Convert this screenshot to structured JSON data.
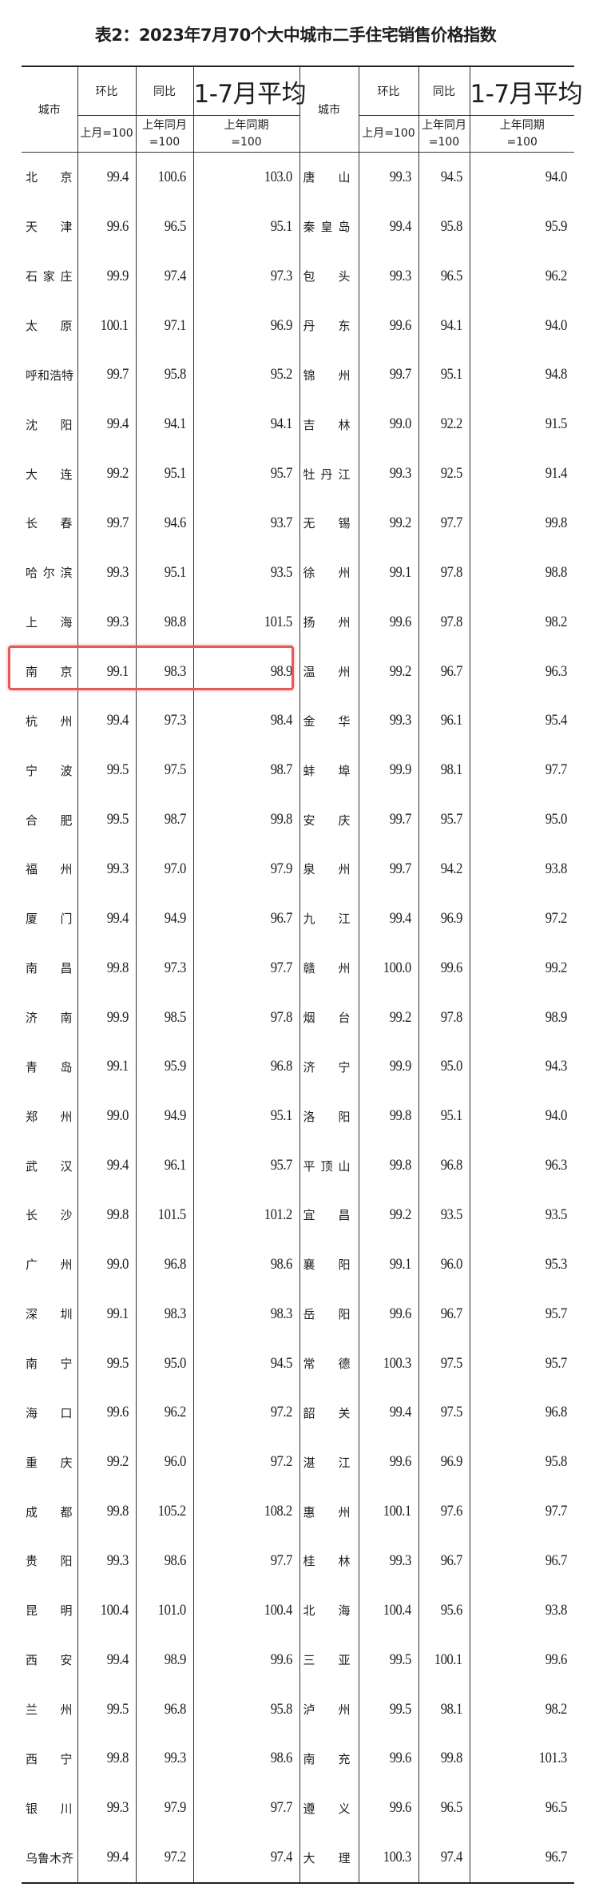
{
  "title": "表2：2023年7月70个大中城市二手住宅销售价格指数",
  "header": {
    "city": "城市",
    "mom": "环比",
    "yoy": "同比",
    "avg": "1-7月平均",
    "mom_base": "上月=100",
    "yoy_base_1": "上年同月",
    "yoy_base_2": "=100",
    "avg_base_1": "上年同期",
    "avg_base_2": "=100"
  },
  "highlight": {
    "city": "南京",
    "color": "#e45a5a"
  },
  "left": [
    {
      "city": "北京",
      "mom": "99.4",
      "yoy": "100.6",
      "avg": "103.0"
    },
    {
      "city": "天津",
      "mom": "99.6",
      "yoy": "96.5",
      "avg": "95.1"
    },
    {
      "city": "石家庄",
      "mom": "99.9",
      "yoy": "97.4",
      "avg": "97.3"
    },
    {
      "city": "太原",
      "mom": "100.1",
      "yoy": "97.1",
      "avg": "96.9"
    },
    {
      "city": "呼和浩特",
      "mom": "99.7",
      "yoy": "95.8",
      "avg": "95.2"
    },
    {
      "city": "沈阳",
      "mom": "99.4",
      "yoy": "94.1",
      "avg": "94.1"
    },
    {
      "city": "大连",
      "mom": "99.2",
      "yoy": "95.1",
      "avg": "95.7"
    },
    {
      "city": "长春",
      "mom": "99.7",
      "yoy": "94.6",
      "avg": "93.7"
    },
    {
      "city": "哈尔滨",
      "mom": "99.3",
      "yoy": "95.1",
      "avg": "93.5"
    },
    {
      "city": "上海",
      "mom": "99.3",
      "yoy": "98.8",
      "avg": "101.5"
    },
    {
      "city": "南京",
      "mom": "99.1",
      "yoy": "98.3",
      "avg": "98.9"
    },
    {
      "city": "杭州",
      "mom": "99.4",
      "yoy": "97.3",
      "avg": "98.4"
    },
    {
      "city": "宁波",
      "mom": "99.5",
      "yoy": "97.5",
      "avg": "98.7"
    },
    {
      "city": "合肥",
      "mom": "99.5",
      "yoy": "98.7",
      "avg": "99.8"
    },
    {
      "city": "福州",
      "mom": "99.3",
      "yoy": "97.0",
      "avg": "97.9"
    },
    {
      "city": "厦门",
      "mom": "99.4",
      "yoy": "94.9",
      "avg": "96.7"
    },
    {
      "city": "南昌",
      "mom": "99.8",
      "yoy": "97.3",
      "avg": "97.7"
    },
    {
      "city": "济南",
      "mom": "99.9",
      "yoy": "98.5",
      "avg": "97.8"
    },
    {
      "city": "青岛",
      "mom": "99.1",
      "yoy": "95.9",
      "avg": "96.8"
    },
    {
      "city": "郑州",
      "mom": "99.0",
      "yoy": "94.9",
      "avg": "95.1"
    },
    {
      "city": "武汉",
      "mom": "99.4",
      "yoy": "96.1",
      "avg": "95.7"
    },
    {
      "city": "长沙",
      "mom": "99.8",
      "yoy": "101.5",
      "avg": "101.2"
    },
    {
      "city": "广州",
      "mom": "99.0",
      "yoy": "96.8",
      "avg": "98.6"
    },
    {
      "city": "深圳",
      "mom": "99.1",
      "yoy": "98.3",
      "avg": "98.3"
    },
    {
      "city": "南宁",
      "mom": "99.5",
      "yoy": "95.0",
      "avg": "94.5"
    },
    {
      "city": "海口",
      "mom": "99.6",
      "yoy": "96.2",
      "avg": "97.2"
    },
    {
      "city": "重庆",
      "mom": "99.2",
      "yoy": "96.0",
      "avg": "97.2"
    },
    {
      "city": "成都",
      "mom": "99.8",
      "yoy": "105.2",
      "avg": "108.2"
    },
    {
      "city": "贵阳",
      "mom": "99.3",
      "yoy": "98.6",
      "avg": "97.7"
    },
    {
      "city": "昆明",
      "mom": "100.4",
      "yoy": "101.0",
      "avg": "100.4"
    },
    {
      "city": "西安",
      "mom": "99.4",
      "yoy": "98.9",
      "avg": "99.6"
    },
    {
      "city": "兰州",
      "mom": "99.5",
      "yoy": "96.8",
      "avg": "95.8"
    },
    {
      "city": "西宁",
      "mom": "99.8",
      "yoy": "99.3",
      "avg": "98.6"
    },
    {
      "city": "银川",
      "mom": "99.3",
      "yoy": "97.9",
      "avg": "97.7"
    },
    {
      "city": "乌鲁木齐",
      "mom": "99.4",
      "yoy": "97.2",
      "avg": "97.4"
    }
  ],
  "right": [
    {
      "city": "唐山",
      "mom": "99.3",
      "yoy": "94.5",
      "avg": "94.0"
    },
    {
      "city": "秦皇岛",
      "mom": "99.4",
      "yoy": "95.8",
      "avg": "95.9"
    },
    {
      "city": "包头",
      "mom": "99.3",
      "yoy": "96.5",
      "avg": "96.2"
    },
    {
      "city": "丹东",
      "mom": "99.6",
      "yoy": "94.1",
      "avg": "94.0"
    },
    {
      "city": "锦州",
      "mom": "99.7",
      "yoy": "95.1",
      "avg": "94.8"
    },
    {
      "city": "吉林",
      "mom": "99.0",
      "yoy": "92.2",
      "avg": "91.5"
    },
    {
      "city": "牡丹江",
      "mom": "99.3",
      "yoy": "92.5",
      "avg": "91.4"
    },
    {
      "city": "无锡",
      "mom": "99.2",
      "yoy": "97.7",
      "avg": "99.8"
    },
    {
      "city": "徐州",
      "mom": "99.1",
      "yoy": "97.8",
      "avg": "98.8"
    },
    {
      "city": "扬州",
      "mom": "99.6",
      "yoy": "97.8",
      "avg": "98.2"
    },
    {
      "city": "温州",
      "mom": "99.2",
      "yoy": "96.7",
      "avg": "96.3"
    },
    {
      "city": "金华",
      "mom": "99.3",
      "yoy": "96.1",
      "avg": "95.4"
    },
    {
      "city": "蚌埠",
      "mom": "99.9",
      "yoy": "98.1",
      "avg": "97.7"
    },
    {
      "city": "安庆",
      "mom": "99.7",
      "yoy": "95.7",
      "avg": "95.0"
    },
    {
      "city": "泉州",
      "mom": "99.7",
      "yoy": "94.2",
      "avg": "93.8"
    },
    {
      "city": "九江",
      "mom": "99.4",
      "yoy": "96.9",
      "avg": "97.2"
    },
    {
      "city": "赣州",
      "mom": "100.0",
      "yoy": "99.6",
      "avg": "99.2"
    },
    {
      "city": "烟台",
      "mom": "99.2",
      "yoy": "97.8",
      "avg": "98.9"
    },
    {
      "city": "济宁",
      "mom": "99.9",
      "yoy": "95.0",
      "avg": "94.3"
    },
    {
      "city": "洛阳",
      "mom": "99.8",
      "yoy": "95.1",
      "avg": "94.0"
    },
    {
      "city": "平顶山",
      "mom": "99.8",
      "yoy": "96.8",
      "avg": "96.3"
    },
    {
      "city": "宜昌",
      "mom": "99.2",
      "yoy": "93.5",
      "avg": "93.5"
    },
    {
      "city": "襄阳",
      "mom": "99.1",
      "yoy": "96.0",
      "avg": "95.3"
    },
    {
      "city": "岳阳",
      "mom": "99.6",
      "yoy": "96.7",
      "avg": "95.7"
    },
    {
      "city": "常德",
      "mom": "100.3",
      "yoy": "97.5",
      "avg": "95.7"
    },
    {
      "city": "韶关",
      "mom": "99.4",
      "yoy": "97.5",
      "avg": "96.8"
    },
    {
      "city": "湛江",
      "mom": "99.6",
      "yoy": "96.9",
      "avg": "95.8"
    },
    {
      "city": "惠州",
      "mom": "100.1",
      "yoy": "97.6",
      "avg": "97.7"
    },
    {
      "city": "桂林",
      "mom": "99.3",
      "yoy": "96.7",
      "avg": "96.7"
    },
    {
      "city": "北海",
      "mom": "100.4",
      "yoy": "95.6",
      "avg": "93.8"
    },
    {
      "city": "三亚",
      "mom": "99.5",
      "yoy": "100.1",
      "avg": "99.6"
    },
    {
      "city": "泸州",
      "mom": "99.5",
      "yoy": "98.1",
      "avg": "98.2"
    },
    {
      "city": "南充",
      "mom": "99.6",
      "yoy": "99.8",
      "avg": "101.3"
    },
    {
      "city": "遵义",
      "mom": "99.6",
      "yoy": "96.5",
      "avg": "96.5"
    },
    {
      "city": "大理",
      "mom": "100.3",
      "yoy": "97.4",
      "avg": "96.7"
    }
  ]
}
